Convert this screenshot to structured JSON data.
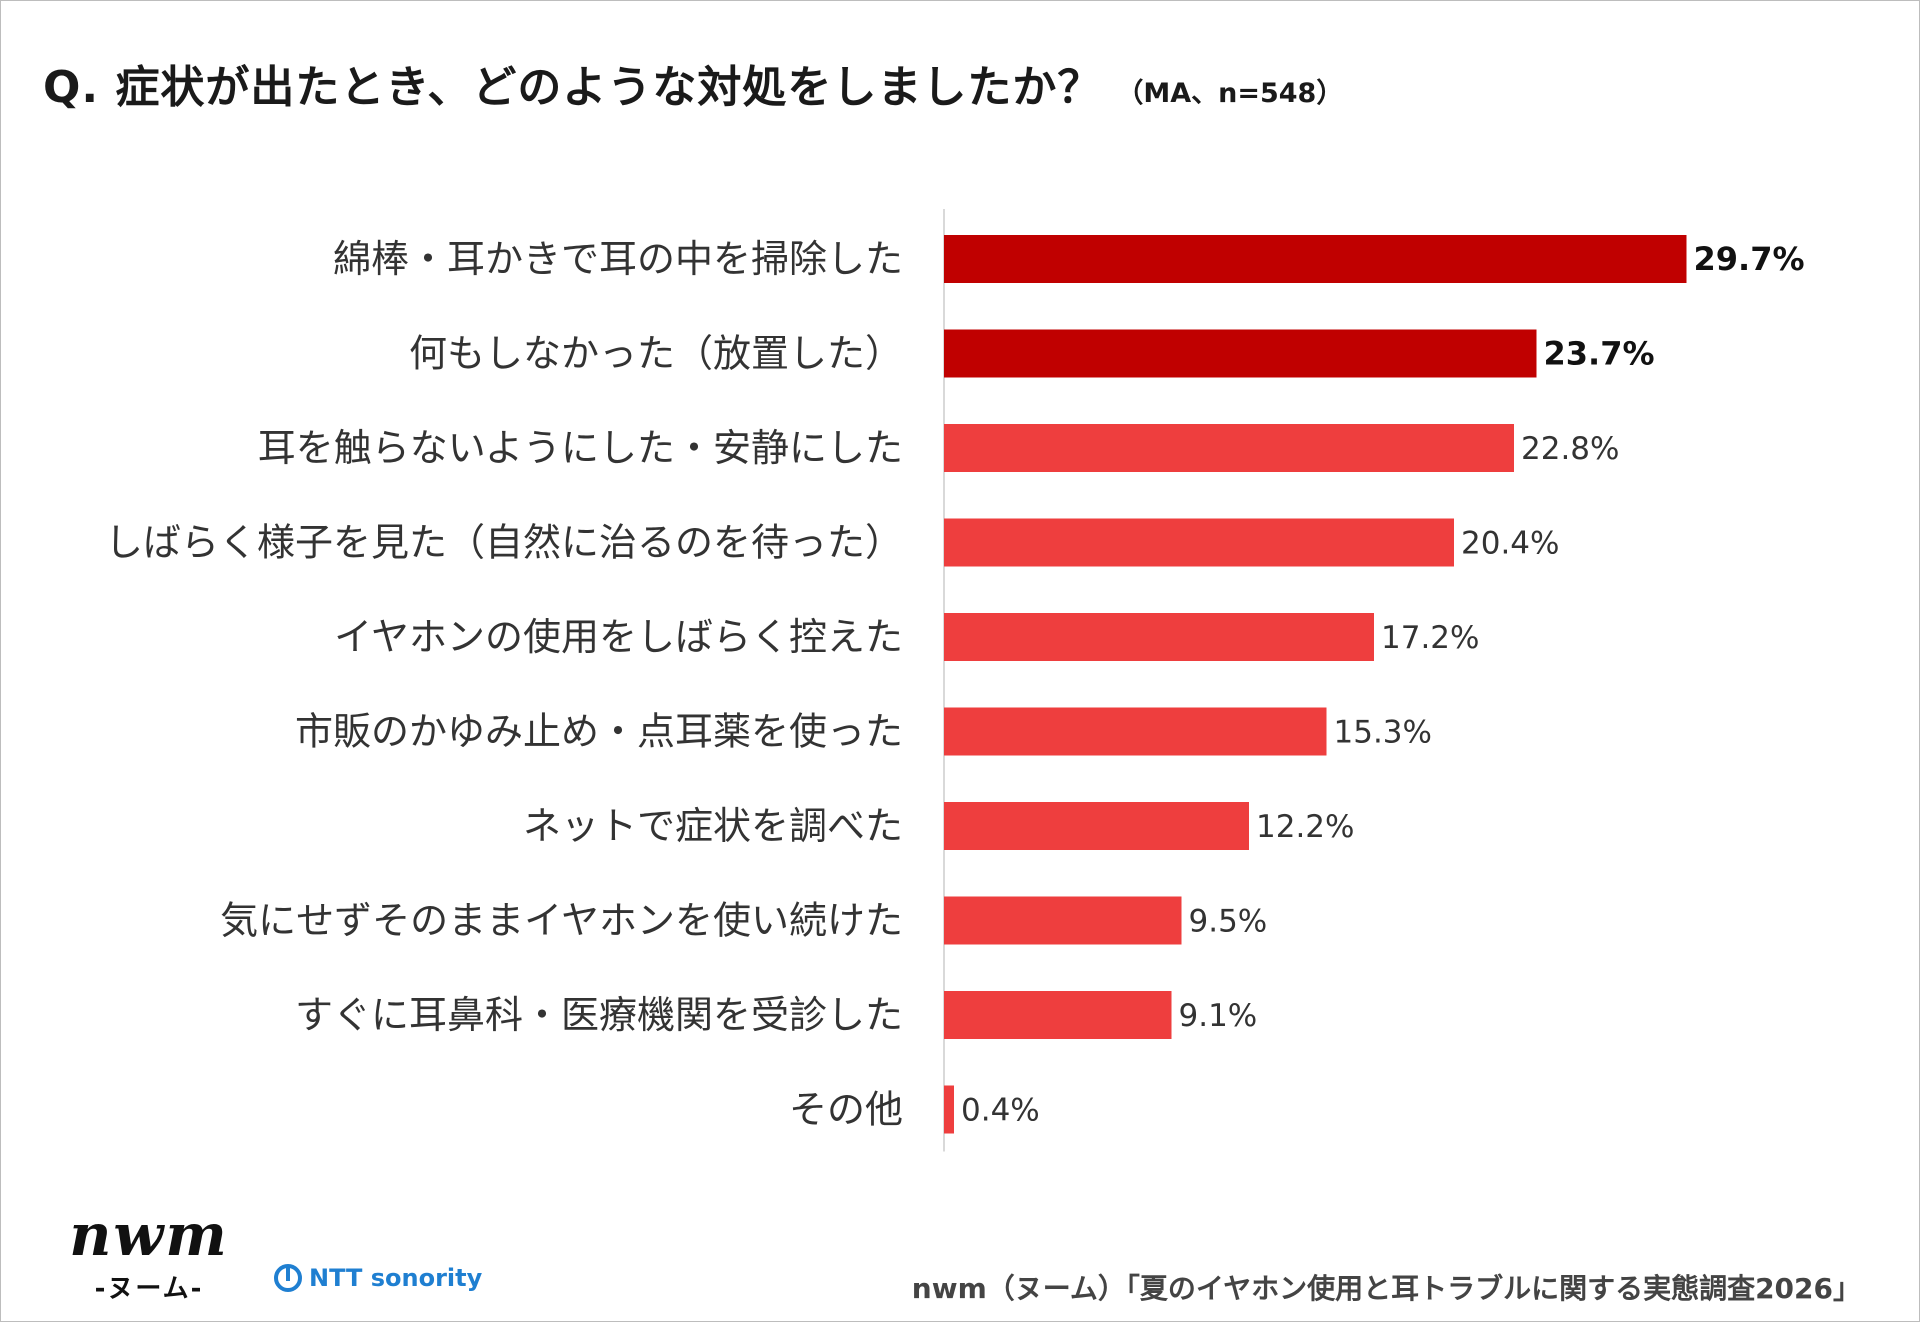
{
  "title": "Q. 症状が出たとき、どのような対処をしましたか？",
  "title_note": "（MA、n=548）",
  "chart_data": {
    "type": "bar",
    "orientation": "horizontal",
    "categories": [
      "綿棒・耳かきで耳の中を掃除した",
      "何もしなかった（放置した）",
      "耳を触らないようにした・安静にした",
      "しばらく様子を見た（自然に治るのを待った）",
      "イヤホンの使用をしばらく控えた",
      "市販のかゆみ止め・点耳薬を使った",
      "ネットで症状を調べた",
      "気にせずそのままイヤホンを使い続けた",
      "すぐに耳鼻科・医療機関を受診した",
      "その他"
    ],
    "values": [
      29.7,
      23.7,
      22.8,
      20.4,
      17.2,
      15.3,
      12.2,
      9.5,
      9.1,
      0.4
    ],
    "value_labels": [
      "29.7%",
      "23.7%",
      "22.8%",
      "20.4%",
      "17.2%",
      "15.3%",
      "12.2%",
      "9.5%",
      "9.1%",
      "0.4%"
    ],
    "highlighted": [
      true,
      true,
      false,
      false,
      false,
      false,
      false,
      false,
      false,
      false
    ],
    "unit": "%",
    "xlim": [
      0,
      35
    ],
    "grid": false,
    "colors": {
      "highlight": "#c00000",
      "normal": "#ee3e3e",
      "axis": "#d9d9d9"
    }
  },
  "footer": {
    "logo_word": "nwm",
    "logo_kana": "-ヌーム-",
    "partner_logo": "NTT sonority",
    "partner_icon": "ntt-circle-icon",
    "source": "nwm（ヌーム）「夏のイヤホン使用と耳トラブルに関する実態調査2026」"
  }
}
